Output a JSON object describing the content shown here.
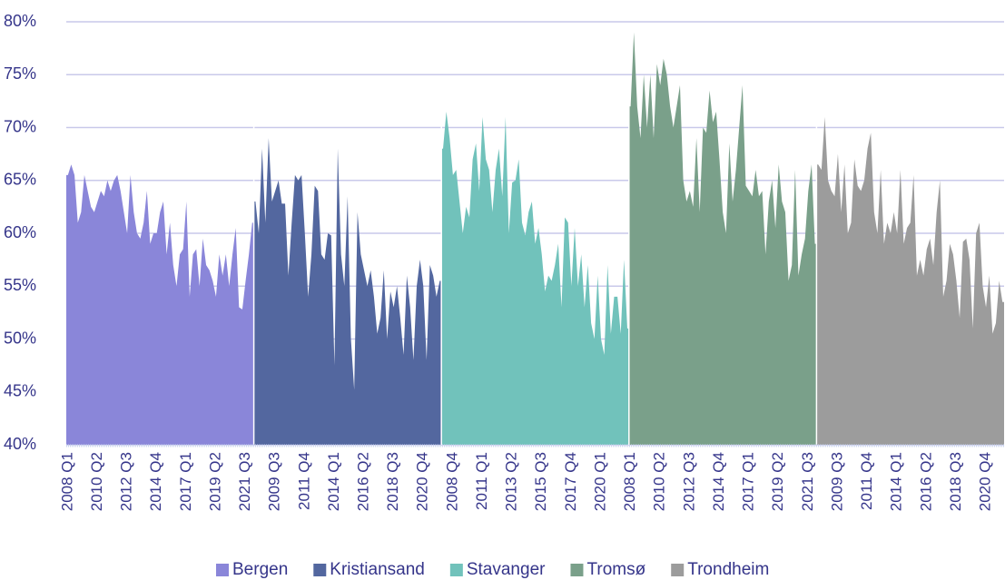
{
  "chart_data": {
    "type": "area",
    "ylim": [
      40,
      80
    ],
    "yticks": [
      {
        "value": 40,
        "label": "40%"
      },
      {
        "value": 45,
        "label": "45%"
      },
      {
        "value": 50,
        "label": "50%"
      },
      {
        "value": 55,
        "label": "55%"
      },
      {
        "value": 60,
        "label": "60%"
      },
      {
        "value": 65,
        "label": "65%"
      },
      {
        "value": 70,
        "label": "70%"
      },
      {
        "value": 75,
        "label": "75%"
      },
      {
        "value": 80,
        "label": "80%"
      }
    ],
    "grid": true,
    "legend": "bottom",
    "series": [
      {
        "name": "Bergen",
        "color": "#8a86d9",
        "categories": [
          "2008 Q1",
          null,
          null,
          null,
          null,
          null,
          null,
          null,
          null,
          "2010 Q2",
          null,
          null,
          null,
          null,
          null,
          null,
          null,
          null,
          "2012 Q3",
          null,
          null,
          null,
          null,
          null,
          null,
          null,
          null,
          "2014 Q4",
          null,
          null,
          null,
          null,
          null,
          null,
          null,
          null,
          "2017 Q1",
          null,
          null,
          null,
          null,
          null,
          null,
          null,
          null,
          "2019 Q2",
          null,
          null,
          null,
          null,
          null,
          null,
          null,
          null,
          "2021 Q3",
          null,
          null
        ],
        "values": [
          65.5,
          66.5,
          65.5,
          61,
          62,
          65.5,
          64,
          62.5,
          62,
          63,
          64,
          63.5,
          65,
          64,
          65,
          65.5,
          64,
          62,
          60,
          65.5,
          62,
          60,
          59.5,
          61,
          64,
          59,
          60,
          60,
          62,
          63,
          58,
          61,
          57,
          55,
          58,
          58.5,
          63,
          54,
          58,
          58.5,
          55,
          59.5,
          57,
          56.5,
          55.5,
          54,
          58,
          56,
          58,
          55,
          58,
          60.5,
          53,
          52.8,
          55.5,
          58,
          61
        ]
      },
      {
        "name": "Kristiansand",
        "color": "#53679f",
        "categories": [
          null,
          null,
          null,
          null,
          null,
          null,
          "2009 Q3",
          null,
          null,
          null,
          null,
          null,
          null,
          null,
          null,
          "2011 Q4",
          null,
          null,
          null,
          null,
          null,
          null,
          null,
          null,
          "2014 Q1",
          null,
          null,
          null,
          null,
          null,
          null,
          null,
          null,
          "2016 Q2",
          null,
          null,
          null,
          null,
          null,
          null,
          null,
          null,
          "2018 Q3",
          null,
          null,
          null,
          null,
          null,
          null,
          null,
          null,
          "2020 Q4",
          null,
          null,
          null,
          null,
          null
        ],
        "values": [
          63,
          60,
          68,
          61,
          69,
          63,
          64,
          65,
          62.8,
          62.8,
          56,
          61,
          65.5,
          65,
          65.5,
          60,
          54,
          58,
          64.5,
          64,
          58,
          57.5,
          60,
          59.8,
          47.5,
          68,
          58,
          55,
          63.5,
          50,
          45.2,
          62,
          58,
          56.5,
          55,
          56.5,
          54,
          50.5,
          52,
          56.5,
          50,
          54.5,
          53,
          55,
          52,
          48.5,
          56,
          53,
          48,
          55,
          57.5,
          55,
          48,
          57,
          56,
          54,
          55.5
        ]
      },
      {
        "name": "Stavanger",
        "color": "#71c2bb",
        "categories": [
          null,
          null,
          null,
          "2008 Q4",
          null,
          null,
          null,
          null,
          null,
          null,
          null,
          null,
          "2011 Q1",
          null,
          null,
          null,
          null,
          null,
          null,
          null,
          null,
          "2013 Q2",
          null,
          null,
          null,
          null,
          null,
          null,
          null,
          null,
          "2015 Q3",
          null,
          null,
          null,
          null,
          null,
          null,
          null,
          null,
          "2017 Q4",
          null,
          null,
          null,
          null,
          null,
          null,
          null,
          null,
          "2020 Q1",
          null,
          null,
          null,
          null,
          null,
          null,
          null,
          null
        ],
        "values": [
          68,
          71.5,
          69,
          65.5,
          66,
          63,
          60,
          62.5,
          61.5,
          67,
          68.5,
          64,
          71,
          67,
          66,
          62,
          66,
          68,
          63.5,
          71,
          60,
          64.8,
          65,
          67,
          61,
          59.8,
          62,
          63,
          59,
          60.5,
          58,
          54.5,
          56,
          55.5,
          57,
          59,
          53,
          61.5,
          61,
          55,
          60.5,
          55,
          58,
          53,
          57,
          51.5,
          50,
          56,
          50,
          48.5,
          57,
          50.5,
          54,
          54,
          50.5,
          57.5,
          51
        ]
      },
      {
        "name": "Tromsø",
        "color": "#7aa08a",
        "categories": [
          "2008 Q1",
          null,
          null,
          null,
          null,
          null,
          null,
          null,
          null,
          "2010 Q2",
          null,
          null,
          null,
          null,
          null,
          null,
          null,
          null,
          "2012 Q3",
          null,
          null,
          null,
          null,
          null,
          null,
          null,
          null,
          "2014 Q4",
          null,
          null,
          null,
          null,
          null,
          null,
          null,
          null,
          "2017 Q1",
          null,
          null,
          null,
          null,
          null,
          null,
          null,
          null,
          "2019 Q2",
          null,
          null,
          null,
          null,
          null,
          null,
          null,
          null,
          "2021 Q3",
          null,
          null
        ],
        "values": [
          72,
          79,
          72,
          69,
          75,
          70,
          75,
          69,
          76,
          74,
          76.5,
          75,
          72,
          70,
          72,
          74,
          65,
          63,
          64,
          62.5,
          69,
          62,
          70,
          69.5,
          73.5,
          70.5,
          71.5,
          67,
          62,
          60,
          68.5,
          63,
          66,
          70,
          74,
          64.5,
          64,
          63.5,
          66,
          63.5,
          64,
          58,
          63,
          65,
          60.5,
          66.5,
          63,
          62,
          55.5,
          57,
          66,
          56,
          58,
          59.5,
          64,
          66.5,
          59
        ]
      },
      {
        "name": "Trondheim",
        "color": "#9c9c9c",
        "categories": [
          null,
          null,
          null,
          null,
          null,
          null,
          "2009 Q3",
          null,
          null,
          null,
          null,
          null,
          null,
          null,
          null,
          "2011 Q4",
          null,
          null,
          null,
          null,
          null,
          null,
          null,
          null,
          "2014 Q1",
          null,
          null,
          null,
          null,
          null,
          null,
          null,
          null,
          "2016 Q2",
          null,
          null,
          null,
          null,
          null,
          null,
          null,
          null,
          "2018 Q3",
          null,
          null,
          null,
          null,
          null,
          null,
          null,
          null,
          "2020 Q4",
          null,
          null,
          null,
          null,
          null
        ],
        "values": [
          66.5,
          66,
          71,
          65,
          64,
          63.5,
          67.5,
          62,
          66.5,
          60,
          61,
          67,
          64.5,
          64,
          65,
          68,
          69.5,
          62,
          60,
          66,
          59,
          61,
          60,
          62,
          60,
          66,
          59,
          60.5,
          61,
          65.5,
          56,
          57.5,
          56,
          58.5,
          59.5,
          57,
          62,
          65,
          54,
          55.5,
          59,
          58,
          55.5,
          52,
          59.2,
          59.5,
          57.5,
          51,
          60,
          61,
          55,
          53,
          56,
          50.5,
          51.5,
          55.5,
          53.5
        ]
      }
    ]
  }
}
